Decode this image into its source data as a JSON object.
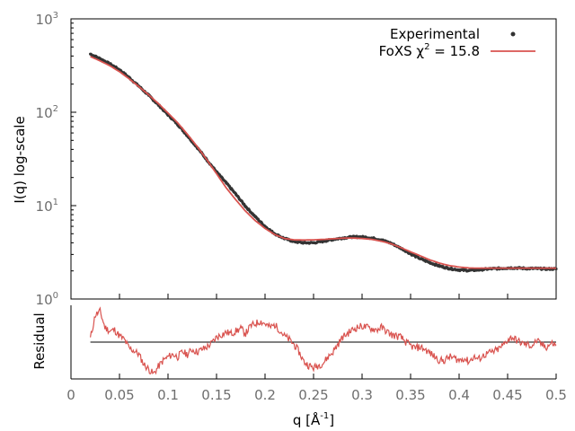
{
  "chart_data": [
    {
      "type": "scatter",
      "panel": "main",
      "ylabel": "I(q) log-scale",
      "xlim": [
        0,
        0.5
      ],
      "ylim": [
        1,
        1000
      ],
      "yscale": "log",
      "y_ticks": [
        {
          "base": "10",
          "exp": "0",
          "value": 1
        },
        {
          "base": "10",
          "exp": "1",
          "value": 10
        },
        {
          "base": "10",
          "exp": "2",
          "value": 100
        },
        {
          "base": "10",
          "exp": "3",
          "value": 1000
        }
      ],
      "grid": false,
      "legend_position": "top-right",
      "legend": [
        {
          "label": "Experimental",
          "marker": "point"
        },
        {
          "label_main": "FoXS χ",
          "label_exp": "2",
          "label_tail": " = 15.8",
          "marker": "line"
        }
      ],
      "series": [
        {
          "name": "Experimental",
          "color": "#333333",
          "x": [
            0.02,
            0.03,
            0.04,
            0.05,
            0.06,
            0.07,
            0.08,
            0.09,
            0.1,
            0.11,
            0.12,
            0.13,
            0.14,
            0.15,
            0.16,
            0.17,
            0.18,
            0.19,
            0.2,
            0.21,
            0.22,
            0.23,
            0.24,
            0.25,
            0.26,
            0.27,
            0.28,
            0.29,
            0.3,
            0.31,
            0.32,
            0.33,
            0.34,
            0.35,
            0.36,
            0.37,
            0.38,
            0.39,
            0.4,
            0.41,
            0.42,
            0.43,
            0.44,
            0.45,
            0.46,
            0.47,
            0.48,
            0.49,
            0.5
          ],
          "y": [
            420,
            375,
            330,
            285,
            235,
            190,
            152,
            120,
            94,
            74,
            56,
            42,
            31,
            23,
            17.5,
            13.2,
            9.8,
            7.6,
            6.0,
            5.0,
            4.45,
            4.12,
            4.0,
            4.0,
            4.15,
            4.35,
            4.5,
            4.62,
            4.62,
            4.5,
            4.3,
            3.95,
            3.5,
            3.05,
            2.7,
            2.45,
            2.25,
            2.12,
            2.05,
            2.02,
            2.05,
            2.1,
            2.12,
            2.15,
            2.15,
            2.12,
            2.12,
            2.1,
            2.1
          ]
        },
        {
          "name": "FoXS",
          "color": "#d9534f",
          "x": [
            0.02,
            0.03,
            0.04,
            0.05,
            0.06,
            0.07,
            0.08,
            0.09,
            0.1,
            0.11,
            0.12,
            0.13,
            0.14,
            0.15,
            0.16,
            0.17,
            0.18,
            0.19,
            0.2,
            0.21,
            0.22,
            0.23,
            0.24,
            0.25,
            0.26,
            0.27,
            0.28,
            0.29,
            0.3,
            0.31,
            0.32,
            0.33,
            0.34,
            0.35,
            0.36,
            0.37,
            0.38,
            0.39,
            0.4,
            0.41,
            0.42,
            0.43,
            0.44,
            0.45,
            0.46,
            0.47,
            0.48,
            0.49,
            0.5
          ],
          "y": [
            395,
            355,
            315,
            272,
            228,
            188,
            154,
            124,
            98,
            77,
            58,
            43,
            31,
            22,
            15.5,
            11.5,
            8.7,
            6.9,
            5.7,
            4.9,
            4.45,
            4.3,
            4.28,
            4.3,
            4.35,
            4.42,
            4.48,
            4.5,
            4.45,
            4.35,
            4.15,
            3.9,
            3.55,
            3.2,
            2.9,
            2.62,
            2.42,
            2.28,
            2.2,
            2.15,
            2.14,
            2.14,
            2.14,
            2.14,
            2.14,
            2.14,
            2.14,
            2.14,
            2.14
          ]
        }
      ]
    },
    {
      "type": "line",
      "panel": "residual",
      "xlabel_main": "q [Å",
      "xlabel_exp": "-1",
      "xlabel_tail": "]",
      "ylabel": "Residual",
      "xlim": [
        0,
        0.5
      ],
      "ylim": [
        -3,
        3
      ],
      "x_ticks": [
        "0",
        "0.05",
        "0.1",
        "0.15",
        "0.2",
        "0.25",
        "0.3",
        "0.35",
        "0.4",
        "0.45",
        "0.5"
      ],
      "zero_line": true,
      "series": [
        {
          "name": "Residual",
          "color": "#d9534f",
          "x": [
            0.02,
            0.025,
            0.03,
            0.035,
            0.04,
            0.045,
            0.05,
            0.055,
            0.06,
            0.065,
            0.07,
            0.075,
            0.08,
            0.085,
            0.09,
            0.095,
            0.1,
            0.105,
            0.11,
            0.115,
            0.12,
            0.125,
            0.13,
            0.135,
            0.14,
            0.145,
            0.15,
            0.155,
            0.16,
            0.165,
            0.17,
            0.175,
            0.18,
            0.185,
            0.19,
            0.195,
            0.2,
            0.205,
            0.21,
            0.215,
            0.22,
            0.225,
            0.23,
            0.235,
            0.24,
            0.245,
            0.25,
            0.255,
            0.26,
            0.265,
            0.27,
            0.275,
            0.28,
            0.285,
            0.29,
            0.295,
            0.3,
            0.305,
            0.31,
            0.315,
            0.32,
            0.325,
            0.33,
            0.335,
            0.34,
            0.345,
            0.35,
            0.355,
            0.36,
            0.365,
            0.37,
            0.375,
            0.38,
            0.385,
            0.39,
            0.395,
            0.4,
            0.405,
            0.41,
            0.415,
            0.42,
            0.425,
            0.43,
            0.435,
            0.44,
            0.445,
            0.45,
            0.455,
            0.46,
            0.465,
            0.47,
            0.475,
            0.48,
            0.485,
            0.49,
            0.495,
            0.5
          ],
          "y": [
            0.3,
            2.2,
            2.5,
            1.2,
            0.9,
            1.0,
            0.5,
            0.2,
            -0.5,
            -0.7,
            -1.0,
            -1.8,
            -2.2,
            -2.6,
            -2.0,
            -1.5,
            -1.2,
            -1.0,
            -1.2,
            -0.8,
            -1.0,
            -0.6,
            -0.8,
            -0.6,
            -0.4,
            -0.1,
            0.4,
            0.6,
            0.8,
            0.7,
            0.9,
            1.1,
            0.7,
            1.3,
            1.5,
            1.7,
            1.5,
            1.2,
            1.4,
            1.0,
            0.5,
            0.2,
            -0.2,
            -0.8,
            -1.6,
            -1.9,
            -2.1,
            -1.9,
            -1.7,
            -1.2,
            -0.8,
            -0.2,
            0.4,
            0.7,
            1.0,
            1.2,
            1.3,
            1.2,
            1.1,
            1.0,
            1.2,
            0.9,
            0.6,
            0.5,
            0.4,
            0.0,
            -0.3,
            -0.5,
            -0.4,
            -0.6,
            -0.9,
            -1.2,
            -1.5,
            -1.5,
            -1.2,
            -1.3,
            -1.5,
            -1.3,
            -1.6,
            -1.2,
            -1.4,
            -1.1,
            -0.9,
            -0.8,
            -0.6,
            -0.3,
            0.2,
            0.4,
            0.1,
            -0.1,
            -0.2,
            -0.3,
            0.1,
            -0.2,
            -0.4,
            -0.1,
            -0.2
          ]
        }
      ]
    }
  ]
}
